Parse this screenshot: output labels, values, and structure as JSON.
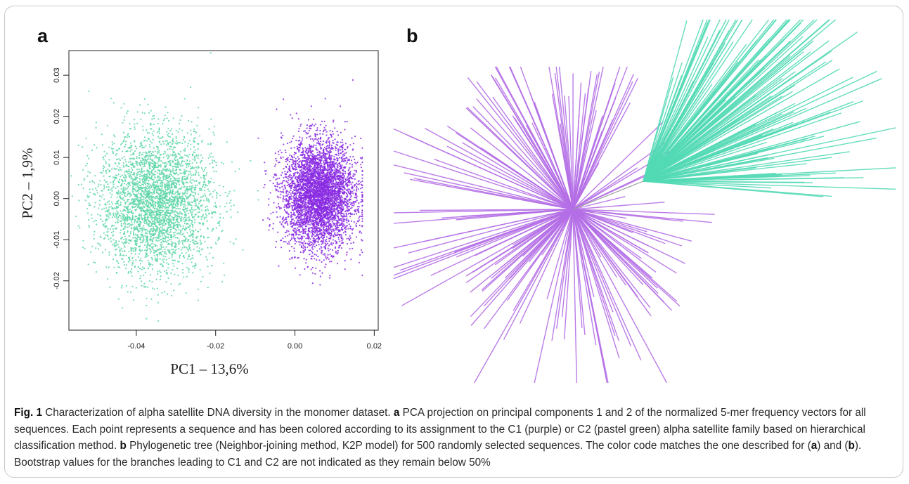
{
  "panels": {
    "a_label": "a",
    "b_label": "b"
  },
  "colors": {
    "c1_purple": "#8a2be2",
    "c2_green": "#5fd6a8",
    "tree_c1": "#b46ee6",
    "tree_c2": "#52d9b5"
  },
  "chart_data": [
    {
      "type": "scatter",
      "panel": "a",
      "xlabel": "PC1 – 13,6%",
      "ylabel": "PC2 – 1,9%",
      "xlim": [
        -0.057,
        0.021
      ],
      "ylim": [
        -0.032,
        0.036
      ],
      "xticks": [
        -0.04,
        -0.02,
        0.0,
        0.02
      ],
      "xtick_labels": [
        "-0.04",
        "-0.02",
        "0.00",
        "0.02"
      ],
      "yticks": [
        -0.02,
        -0.01,
        0.0,
        0.01,
        0.02,
        0.03
      ],
      "ytick_labels": [
        "-0.02",
        "-0.01",
        "0.00",
        "0.01",
        "0.02",
        "0.03"
      ],
      "grid": false,
      "series": [
        {
          "family": "C2",
          "color": "#5fd6a8",
          "center": [
            -0.035,
            -0.001
          ],
          "spread": [
            0.0072,
            0.0085
          ],
          "approx_points": 3500
        },
        {
          "family": "C1",
          "color": "#8a2be2",
          "center": [
            0.006,
            0.001
          ],
          "spread": [
            0.0045,
            0.0065
          ],
          "approx_points": 4500
        }
      ]
    },
    {
      "type": "tree",
      "panel": "b",
      "method": "Neighbor-joining (K2P)",
      "leaves": 500,
      "clades": [
        {
          "family": "C1",
          "color": "#b46ee6"
        },
        {
          "family": "C2",
          "color": "#52d9b5"
        }
      ]
    }
  ],
  "caption": {
    "fig_label": "Fig. 1",
    "title": " Characterization of alpha satellite DNA diversity in the monomer dataset. ",
    "a_label": "a",
    "a_text": " PCA projection on principal components 1 and 2 of the normalized 5-mer frequency vectors for all sequences. Each point represents a sequence and has been colored according to its assignment to the C1 (purple) or C2 (pastel green) alpha satellite family based on hierarchical classification method. ",
    "b_label": "b",
    "b_text": " Phylogenetic tree (Neighbor-joining method, K2P model) for 500 randomly selected sequences. The color code matches the one described for (",
    "ref_a": "a",
    "mid_text": ") and (",
    "ref_b": "b",
    "end_text": "). Bootstrap values for the branches leading to C1 and C2 are not indicated as they remain below 50%"
  }
}
